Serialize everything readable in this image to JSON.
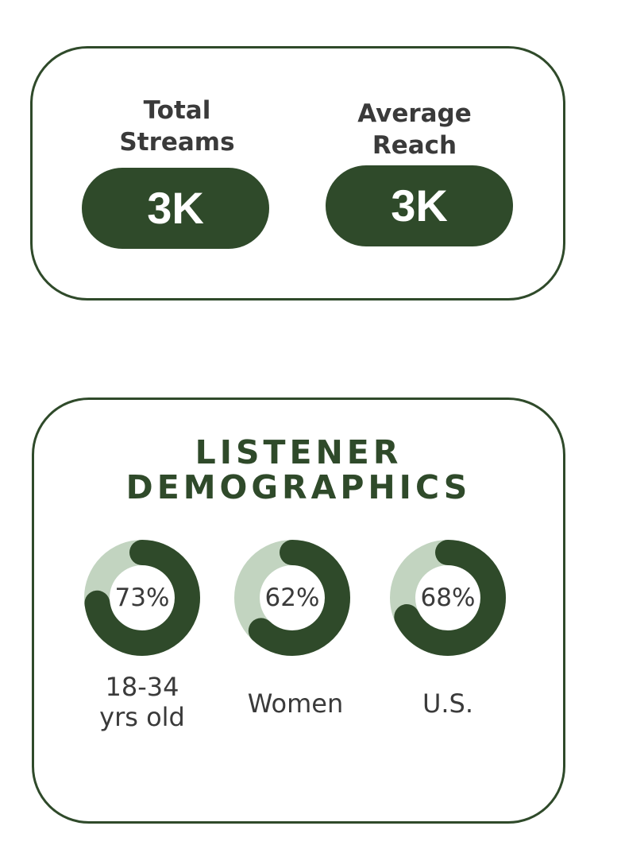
{
  "stats": {
    "total_streams": {
      "label": "Total\nStreams",
      "value": "3K"
    },
    "average_reach": {
      "label": "Average\nReach",
      "value": "3K"
    }
  },
  "demographics": {
    "title_line1": "LISTENER",
    "title_line2": "DEMOGRAPHICS",
    "items": [
      {
        "value_text": "73%",
        "percent": 73,
        "label": "18-34\nyrs old"
      },
      {
        "value_text": "62%",
        "percent": 62,
        "label": "Women"
      },
      {
        "value_text": "68%",
        "percent": 68,
        "label": "U.S."
      }
    ]
  },
  "colors": {
    "accent": "#2f4a2a",
    "ring_track": "#c2d4c0",
    "text": "#3a3a3a",
    "background": "#ffffff"
  }
}
